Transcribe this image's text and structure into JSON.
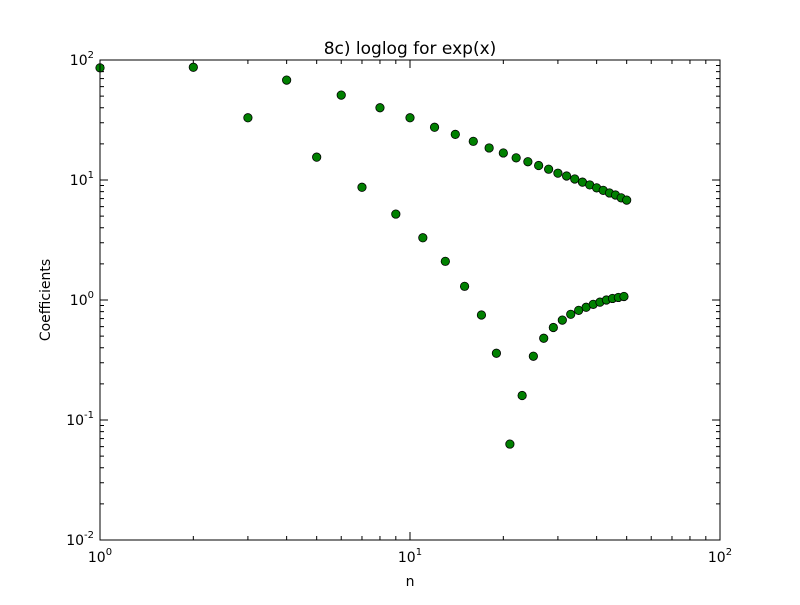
{
  "chart_data": {
    "type": "scatter",
    "title": "8c) loglog for exp(x)",
    "xlabel": "n",
    "ylabel": "Coefficients",
    "xscale": "log",
    "yscale": "log",
    "xlim": [
      1,
      100
    ],
    "ylim": [
      0.01,
      100
    ],
    "grid": false,
    "marker_color": "#008000",
    "marker_edge_color": "#000000",
    "x_ticks": [
      {
        "value": 1,
        "base": "10",
        "exp": "0"
      },
      {
        "value": 10,
        "base": "10",
        "exp": "1"
      },
      {
        "value": 100,
        "base": "10",
        "exp": "2"
      }
    ],
    "y_ticks": [
      {
        "value": 0.01,
        "base": "10",
        "exp": "-2"
      },
      {
        "value": 0.1,
        "base": "10",
        "exp": "-1"
      },
      {
        "value": 1,
        "base": "10",
        "exp": "0"
      },
      {
        "value": 10,
        "base": "10",
        "exp": "1"
      },
      {
        "value": 100,
        "base": "10",
        "exp": "2"
      }
    ],
    "series": [
      {
        "x": [
          1,
          2,
          3,
          4,
          5,
          6,
          7,
          8,
          9,
          10,
          11,
          12,
          13,
          14,
          15,
          16,
          17,
          18,
          19,
          20,
          21,
          22,
          23,
          24,
          25,
          26,
          27,
          28,
          29,
          30,
          31,
          32,
          33,
          34,
          35,
          36,
          37,
          38,
          39,
          40,
          41,
          42,
          43,
          44,
          45,
          46,
          47,
          48,
          49,
          50
        ],
        "y": [
          86,
          87,
          33,
          68,
          15.5,
          51,
          8.7,
          40,
          5.2,
          33,
          3.3,
          27.5,
          2.1,
          24,
          1.3,
          21,
          0.75,
          18.5,
          0.36,
          16.8,
          0.063,
          15.3,
          0.16,
          14.2,
          0.34,
          13.2,
          0.48,
          12.3,
          0.59,
          11.4,
          0.68,
          10.8,
          0.76,
          10.2,
          0.82,
          9.6,
          0.87,
          9.1,
          0.92,
          8.6,
          0.96,
          8.2,
          1.0,
          7.8,
          1.03,
          7.5,
          1.05,
          7.1,
          1.07,
          6.8
        ]
      }
    ]
  }
}
